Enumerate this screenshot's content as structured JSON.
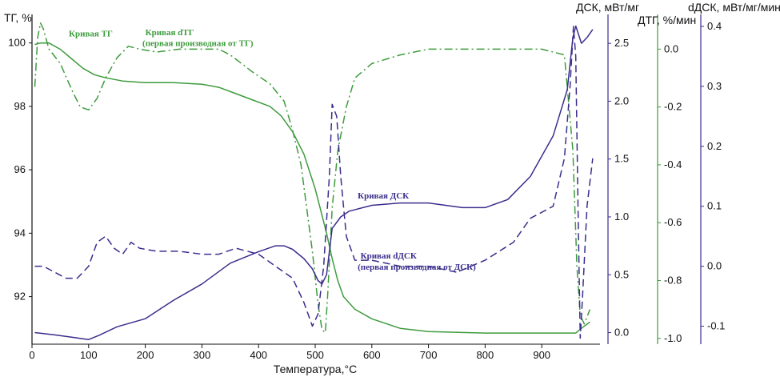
{
  "chart_data": {
    "type": "line",
    "x_label": "Температура,°C",
    "x_range": [
      0,
      1000
    ],
    "x_ticks": [
      0,
      100,
      200,
      300,
      400,
      500,
      600,
      700,
      800,
      900
    ],
    "axes": {
      "tg": {
        "label": "ТГ, %",
        "range": [
          90.5,
          100.9
        ],
        "ticks": [
          92,
          94,
          96,
          98,
          100
        ],
        "color": "#111111"
      },
      "dsc": {
        "label": "ДСК, мВт/мг",
        "range": [
          -0.1,
          2.75
        ],
        "ticks": [
          0.0,
          0.5,
          1.0,
          1.5,
          2.0,
          2.5
        ],
        "color": "#3a2e8c"
      },
      "dtg": {
        "label": "ДТГ, %/мин",
        "range": [
          -1.02,
          0.12
        ],
        "ticks": [
          -1.0,
          -0.8,
          -0.6,
          -0.4,
          -0.2,
          0.0
        ],
        "color": "#3d9b3d"
      },
      "ddsc": {
        "label": "dДСК, мВт/мг/мин",
        "range": [
          -0.13,
          0.42
        ],
        "ticks": [
          -0.1,
          0.0,
          0.1,
          0.2,
          0.3,
          0.4
        ],
        "color": "#3a2e8c"
      }
    },
    "series": [
      {
        "name": "Кривая ТГ",
        "axis": "tg",
        "style": "solid",
        "color": "#3d9b3d",
        "points": [
          [
            5,
            99.95
          ],
          [
            15,
            100.0
          ],
          [
            30,
            100.0
          ],
          [
            50,
            99.8
          ],
          [
            70,
            99.5
          ],
          [
            90,
            99.2
          ],
          [
            110,
            99.0
          ],
          [
            130,
            98.9
          ],
          [
            160,
            98.8
          ],
          [
            200,
            98.75
          ],
          [
            250,
            98.75
          ],
          [
            300,
            98.7
          ],
          [
            330,
            98.6
          ],
          [
            360,
            98.4
          ],
          [
            390,
            98.2
          ],
          [
            420,
            98.0
          ],
          [
            440,
            97.7
          ],
          [
            460,
            97.2
          ],
          [
            480,
            96.5
          ],
          [
            500,
            95.4
          ],
          [
            510,
            94.7
          ],
          [
            520,
            94.0
          ],
          [
            530,
            93.2
          ],
          [
            540,
            92.5
          ],
          [
            550,
            92.0
          ],
          [
            570,
            91.6
          ],
          [
            600,
            91.3
          ],
          [
            650,
            91.0
          ],
          [
            700,
            90.9
          ],
          [
            800,
            90.85
          ],
          [
            900,
            90.85
          ],
          [
            960,
            90.85
          ],
          [
            970,
            91.0
          ],
          [
            985,
            91.2
          ]
        ]
      },
      {
        "name": "Кривая dТГ",
        "axis": "dtg",
        "style": "dashdot",
        "color": "#3d9b3d",
        "points": [
          [
            5,
            -0.13
          ],
          [
            10,
            0.04
          ],
          [
            15,
            0.09
          ],
          [
            20,
            0.07
          ],
          [
            30,
            0.0
          ],
          [
            50,
            -0.05
          ],
          [
            70,
            -0.14
          ],
          [
            85,
            -0.2
          ],
          [
            100,
            -0.21
          ],
          [
            115,
            -0.17
          ],
          [
            130,
            -0.1
          ],
          [
            150,
            -0.03
          ],
          [
            170,
            0.01
          ],
          [
            190,
            0.0
          ],
          [
            220,
            -0.01
          ],
          [
            260,
            0.0
          ],
          [
            300,
            0.0
          ],
          [
            330,
            0.0
          ],
          [
            350,
            -0.02
          ],
          [
            370,
            -0.05
          ],
          [
            390,
            -0.08
          ],
          [
            420,
            -0.12
          ],
          [
            445,
            -0.18
          ],
          [
            460,
            -0.28
          ],
          [
            475,
            -0.4
          ],
          [
            485,
            -0.55
          ],
          [
            495,
            -0.7
          ],
          [
            505,
            -0.88
          ],
          [
            512,
            -0.97
          ],
          [
            518,
            -0.98
          ],
          [
            522,
            -0.85
          ],
          [
            530,
            -0.55
          ],
          [
            540,
            -0.35
          ],
          [
            555,
            -0.2
          ],
          [
            570,
            -0.1
          ],
          [
            600,
            -0.05
          ],
          [
            650,
            -0.02
          ],
          [
            700,
            0.0
          ],
          [
            750,
            0.0
          ],
          [
            800,
            0.0
          ],
          [
            850,
            0.0
          ],
          [
            900,
            0.0
          ],
          [
            940,
            -0.02
          ],
          [
            955,
            -0.35
          ],
          [
            962,
            -0.75
          ],
          [
            968,
            -0.92
          ],
          [
            975,
            -0.95
          ],
          [
            985,
            -0.9
          ]
        ]
      },
      {
        "name": "Кривая ДСК",
        "axis": "dsc",
        "style": "solid",
        "color": "#3a2e8c",
        "points": [
          [
            5,
            0.0
          ],
          [
            40,
            -0.02
          ],
          [
            70,
            -0.04
          ],
          [
            100,
            -0.06
          ],
          [
            120,
            -0.02
          ],
          [
            150,
            0.05
          ],
          [
            200,
            0.12
          ],
          [
            250,
            0.28
          ],
          [
            300,
            0.42
          ],
          [
            350,
            0.6
          ],
          [
            400,
            0.7
          ],
          [
            430,
            0.75
          ],
          [
            445,
            0.75
          ],
          [
            460,
            0.72
          ],
          [
            480,
            0.64
          ],
          [
            495,
            0.55
          ],
          [
            505,
            0.45
          ],
          [
            512,
            0.42
          ],
          [
            520,
            0.5
          ],
          [
            530,
            0.9
          ],
          [
            545,
            1.0
          ],
          [
            560,
            1.05
          ],
          [
            600,
            1.1
          ],
          [
            650,
            1.12
          ],
          [
            700,
            1.12
          ],
          [
            760,
            1.08
          ],
          [
            800,
            1.08
          ],
          [
            840,
            1.15
          ],
          [
            880,
            1.35
          ],
          [
            920,
            1.7
          ],
          [
            945,
            2.1
          ],
          [
            955,
            2.55
          ],
          [
            960,
            2.65
          ],
          [
            970,
            2.5
          ],
          [
            980,
            2.55
          ],
          [
            990,
            2.62
          ]
        ]
      },
      {
        "name": "Кривая dДСК",
        "axis": "ddsc",
        "style": "dashed",
        "color": "#3a2e8c",
        "points": [
          [
            5,
            0.0
          ],
          [
            20,
            0.0
          ],
          [
            40,
            -0.01
          ],
          [
            60,
            -0.02
          ],
          [
            80,
            -0.02
          ],
          [
            100,
            0.0
          ],
          [
            115,
            0.04
          ],
          [
            130,
            0.05
          ],
          [
            145,
            0.03
          ],
          [
            160,
            0.02
          ],
          [
            175,
            0.04
          ],
          [
            190,
            0.03
          ],
          [
            220,
            0.025
          ],
          [
            260,
            0.025
          ],
          [
            300,
            0.02
          ],
          [
            330,
            0.02
          ],
          [
            360,
            0.03
          ],
          [
            400,
            0.02
          ],
          [
            430,
            0.0
          ],
          [
            460,
            -0.02
          ],
          [
            480,
            -0.06
          ],
          [
            495,
            -0.1
          ],
          [
            505,
            -0.08
          ],
          [
            515,
            0.0
          ],
          [
            525,
            0.15
          ],
          [
            530,
            0.27
          ],
          [
            538,
            0.25
          ],
          [
            545,
            0.15
          ],
          [
            555,
            0.05
          ],
          [
            570,
            0.01
          ],
          [
            600,
            0.01
          ],
          [
            650,
            0.0
          ],
          [
            700,
            0.0
          ],
          [
            750,
            -0.01
          ],
          [
            800,
            0.01
          ],
          [
            850,
            0.04
          ],
          [
            880,
            0.08
          ],
          [
            920,
            0.1
          ],
          [
            940,
            0.18
          ],
          [
            950,
            0.3
          ],
          [
            956,
            0.4
          ],
          [
            960,
            0.35
          ],
          [
            964,
            0.1
          ],
          [
            968,
            -0.12
          ],
          [
            972,
            -0.05
          ],
          [
            980,
            0.1
          ],
          [
            990,
            0.18
          ]
        ]
      }
    ],
    "annotations": [
      {
        "text": "Кривая ТГ",
        "x": 65,
        "tg": 100.2,
        "color": "#3d9b3d"
      },
      {
        "text": "Кривая dТГ",
        "x": 200,
        "tg": 100.25,
        "color": "#3d9b3d"
      },
      {
        "text": "(первая производная от ТГ)",
        "x": 195,
        "tg": 99.9,
        "color": "#3d9b3d"
      },
      {
        "text": "Кривая ДСК",
        "x": 575,
        "tg": 95.1,
        "color": "#3a2e8c"
      },
      {
        "text": "Кривая dДСК",
        "x": 580,
        "tg": 93.2,
        "color": "#3a2e8c"
      },
      {
        "text": "(первая производная от ДСК)",
        "x": 575,
        "tg": 92.85,
        "color": "#3a2e8c"
      }
    ],
    "grid": false,
    "legend": "none"
  }
}
